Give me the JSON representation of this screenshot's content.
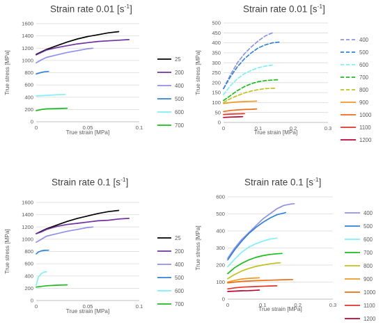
{
  "chart_data": [
    {
      "type": "line",
      "title_text": "Strain rate 0.01 [s",
      "title_exp": "-1",
      "title_close": "]",
      "xlabel": "True strain [MPa]",
      "ylabel": "True stress [MPa]",
      "xlim": [
        0,
        0.1
      ],
      "ylim": [
        0,
        1600
      ],
      "xticks": [
        0,
        0.05,
        0.1
      ],
      "xtick_labels": [
        "0",
        "0.05",
        "0.1"
      ],
      "yticks": [
        0,
        200,
        400,
        600,
        800,
        1000,
        1200,
        1400,
        1600
      ],
      "grid": "horizontal",
      "legend": "right",
      "series": [
        {
          "name": "25",
          "color": "#000000",
          "dash": "solid",
          "x": [
            0,
            0.005,
            0.01,
            0.02,
            0.03,
            0.04,
            0.05,
            0.06,
            0.07,
            0.08
          ],
          "y": [
            1100,
            1140,
            1180,
            1240,
            1300,
            1350,
            1390,
            1420,
            1450,
            1470
          ]
        },
        {
          "name": "200",
          "color": "#7030a0",
          "dash": "solid",
          "x": [
            0,
            0.005,
            0.01,
            0.02,
            0.03,
            0.04,
            0.05,
            0.06,
            0.07,
            0.08,
            0.09
          ],
          "y": [
            1090,
            1130,
            1170,
            1210,
            1240,
            1270,
            1290,
            1310,
            1320,
            1330,
            1340
          ]
        },
        {
          "name": "400",
          "color": "#8e90ec",
          "dash": "solid",
          "x": [
            0,
            0.005,
            0.01,
            0.02,
            0.03,
            0.04,
            0.05,
            0.055
          ],
          "y": [
            960,
            1010,
            1050,
            1090,
            1130,
            1160,
            1190,
            1200
          ]
        },
        {
          "name": "500",
          "color": "#2e83dc",
          "dash": "solid",
          "x": [
            0,
            0.004,
            0.008,
            0.012
          ],
          "y": [
            780,
            800,
            815,
            820
          ]
        },
        {
          "name": "600",
          "color": "#7cf1f7",
          "dash": "solid",
          "x": [
            0,
            0.01,
            0.02,
            0.028
          ],
          "y": [
            420,
            430,
            440,
            445
          ]
        },
        {
          "name": "700",
          "color": "#1bbd1b",
          "dash": "solid",
          "x": [
            0,
            0.005,
            0.01,
            0.02,
            0.03
          ],
          "y": [
            180,
            200,
            210,
            215,
            220
          ]
        }
      ]
    },
    {
      "type": "line",
      "title_text": "Strain rate 0.01 [s",
      "title_exp": "-1",
      "title_close": "]",
      "xlabel": "True strain [MPa]",
      "ylabel": "True stress [MPa]",
      "xlim": [
        0,
        0.3
      ],
      "ylim": [
        0,
        500
      ],
      "xticks": [
        0,
        0.1,
        0.2,
        0.3
      ],
      "xtick_labels": [
        "0",
        "0.1",
        "0.2",
        "0.3"
      ],
      "yticks": [
        0,
        50,
        100,
        150,
        200,
        250,
        300,
        350,
        400,
        450,
        500
      ],
      "grid": "horizontal",
      "legend": "right",
      "series": [
        {
          "name": "400",
          "color": "#8e90ec",
          "dash": "dashed",
          "x": [
            0,
            0.02,
            0.04,
            0.06,
            0.08,
            0.1,
            0.12,
            0.14
          ],
          "y": [
            170,
            240,
            300,
            345,
            380,
            410,
            435,
            450
          ]
        },
        {
          "name": "500",
          "color": "#2e83dc",
          "dash": "dashed",
          "x": [
            0,
            0.02,
            0.04,
            0.06,
            0.08,
            0.1,
            0.12,
            0.14,
            0.165
          ],
          "y": [
            170,
            230,
            280,
            320,
            350,
            375,
            390,
            400,
            405
          ]
        },
        {
          "name": "600",
          "color": "#7cf1f7",
          "dash": "dashed",
          "x": [
            0,
            0.02,
            0.04,
            0.06,
            0.08,
            0.1,
            0.12,
            0.14
          ],
          "y": [
            140,
            185,
            220,
            245,
            262,
            275,
            283,
            288
          ]
        },
        {
          "name": "700",
          "color": "#1bbd1b",
          "dash": "dashed",
          "x": [
            0,
            0.02,
            0.04,
            0.06,
            0.08,
            0.1,
            0.12,
            0.14,
            0.16
          ],
          "y": [
            110,
            135,
            160,
            180,
            195,
            205,
            210,
            213,
            215
          ]
        },
        {
          "name": "800",
          "color": "#c2c21a",
          "dash": "dashed",
          "x": [
            0,
            0.02,
            0.04,
            0.06,
            0.08,
            0.1,
            0.12,
            0.15
          ],
          "y": [
            100,
            120,
            135,
            148,
            158,
            165,
            170,
            172
          ]
        },
        {
          "name": "900",
          "color": "#ee9a20",
          "dash": "solid",
          "x": [
            0,
            0.02,
            0.04,
            0.06,
            0.08,
            0.095
          ],
          "y": [
            95,
            100,
            103,
            105,
            106,
            107
          ]
        },
        {
          "name": "1000",
          "color": "#ed6d15",
          "dash": "solid",
          "x": [
            0,
            0.02,
            0.04,
            0.06,
            0.08,
            0.095
          ],
          "y": [
            55,
            60,
            63,
            65,
            66,
            68
          ]
        },
        {
          "name": "1100",
          "color": "#e53122",
          "dash": "solid",
          "x": [
            0,
            0.02,
            0.04,
            0.06
          ],
          "y": [
            40,
            42,
            43,
            44
          ]
        },
        {
          "name": "1200",
          "color": "#c0002e",
          "dash": "solid",
          "x": [
            0,
            0.02,
            0.04,
            0.055
          ],
          "y": [
            25,
            27,
            28,
            29
          ]
        }
      ]
    },
    {
      "type": "line",
      "title_text": "Strain rate 0.1 [s",
      "title_exp": "-1",
      "title_close": "]",
      "xlabel": "True strain [MPa]",
      "ylabel": "True stress [MPa]",
      "xlim": [
        0,
        0.1
      ],
      "ylim": [
        0,
        1600
      ],
      "xticks": [
        0,
        0.05,
        0.1
      ],
      "xtick_labels": [
        "0",
        "0.05",
        "0.1"
      ],
      "yticks": [
        0,
        200,
        400,
        600,
        800,
        1000,
        1200,
        1400,
        1600
      ],
      "grid": "horizontal",
      "legend": "right",
      "series": [
        {
          "name": "25",
          "color": "#000000",
          "dash": "solid",
          "x": [
            0,
            0.005,
            0.01,
            0.02,
            0.03,
            0.04,
            0.05,
            0.06,
            0.07,
            0.08
          ],
          "y": [
            1090,
            1130,
            1170,
            1230,
            1290,
            1340,
            1380,
            1420,
            1450,
            1470
          ]
        },
        {
          "name": "200",
          "color": "#7030a0",
          "dash": "solid",
          "x": [
            0,
            0.005,
            0.01,
            0.02,
            0.03,
            0.04,
            0.05,
            0.06,
            0.07,
            0.08,
            0.09
          ],
          "y": [
            1090,
            1120,
            1160,
            1210,
            1240,
            1260,
            1280,
            1300,
            1310,
            1330,
            1340
          ]
        },
        {
          "name": "400",
          "color": "#8e90ec",
          "dash": "solid",
          "x": [
            0,
            0.005,
            0.01,
            0.02,
            0.03,
            0.04,
            0.05,
            0.055
          ],
          "y": [
            950,
            1000,
            1050,
            1090,
            1130,
            1160,
            1190,
            1200
          ]
        },
        {
          "name": "500",
          "color": "#2e83dc",
          "dash": "solid",
          "x": [
            0,
            0.002,
            0.005,
            0.008,
            0.012
          ],
          "y": [
            760,
            790,
            810,
            818,
            820
          ]
        },
        {
          "name": "600",
          "color": "#7cf1f7",
          "dash": "solid",
          "x": [
            0,
            0.002,
            0.005,
            0.008,
            0.01
          ],
          "y": [
            250,
            380,
            440,
            465,
            470
          ]
        },
        {
          "name": "700",
          "color": "#1bbd1b",
          "dash": "solid",
          "x": [
            0,
            0.005,
            0.01,
            0.02,
            0.03
          ],
          "y": [
            220,
            230,
            240,
            250,
            255
          ]
        }
      ]
    },
    {
      "type": "line",
      "title_text": "Strain rate 0.1 [s",
      "title_exp": "-1",
      "title_close": "]",
      "xlabel": "True strain [MPa]",
      "ylabel": "True stress [MPa]",
      "xlim": [
        0,
        0.3
      ],
      "ylim": [
        0,
        600
      ],
      "xticks": [
        0,
        0.1,
        0.2,
        0.3
      ],
      "xtick_labels": [
        "0",
        "0.1",
        "0.2",
        "0.3"
      ],
      "yticks": [
        0,
        100,
        200,
        300,
        400,
        500,
        600
      ],
      "grid": "horizontal",
      "legend": "right",
      "series": [
        {
          "name": "400",
          "color": "#8e90ec",
          "dash": "solid",
          "x": [
            0,
            0.02,
            0.04,
            0.06,
            0.08,
            0.1,
            0.12,
            0.14,
            0.16,
            0.18,
            0.19
          ],
          "y": [
            240,
            300,
            350,
            390,
            430,
            470,
            500,
            530,
            550,
            558,
            560
          ]
        },
        {
          "name": "500",
          "color": "#2e83dc",
          "dash": "solid",
          "x": [
            0,
            0.02,
            0.04,
            0.06,
            0.08,
            0.1,
            0.12,
            0.14,
            0.16,
            0.165
          ],
          "y": [
            230,
            290,
            340,
            385,
            420,
            450,
            475,
            495,
            505,
            508
          ]
        },
        {
          "name": "600",
          "color": "#7cf1f7",
          "dash": "solid",
          "x": [
            0,
            0.02,
            0.04,
            0.06,
            0.08,
            0.1,
            0.12,
            0.14
          ],
          "y": [
            190,
            235,
            275,
            305,
            325,
            340,
            352,
            358
          ]
        },
        {
          "name": "700",
          "color": "#1bbd1b",
          "dash": "solid",
          "x": [
            0,
            0.02,
            0.04,
            0.06,
            0.08,
            0.1,
            0.12,
            0.14,
            0.155
          ],
          "y": [
            150,
            185,
            210,
            230,
            245,
            255,
            262,
            266,
            268
          ]
        },
        {
          "name": "800",
          "color": "#c2c21a",
          "dash": "solid",
          "x": [
            0,
            0.02,
            0.04,
            0.06,
            0.08,
            0.1,
            0.12,
            0.14,
            0.15
          ],
          "y": [
            120,
            145,
            165,
            180,
            192,
            200,
            207,
            212,
            213
          ]
        },
        {
          "name": "900",
          "color": "#ee9a20",
          "dash": "solid",
          "x": [
            0,
            0.02,
            0.04,
            0.06,
            0.08,
            0.09
          ],
          "y": [
            100,
            110,
            118,
            122,
            124,
            125
          ]
        },
        {
          "name": "1000",
          "color": "#ed6d15",
          "dash": "solid",
          "x": [
            0,
            0.02,
            0.04,
            0.08,
            0.12,
            0.16,
            0.185
          ],
          "y": [
            95,
            100,
            104,
            108,
            111,
            114,
            115
          ]
        },
        {
          "name": "1100",
          "color": "#e53122",
          "dash": "solid",
          "x": [
            0,
            0.02,
            0.04,
            0.08,
            0.12,
            0.14
          ],
          "y": [
            60,
            66,
            70,
            74,
            77,
            78
          ]
        },
        {
          "name": "1200",
          "color": "#c0002e",
          "dash": "solid",
          "x": [
            0,
            0.02,
            0.04,
            0.06,
            0.08,
            0.09
          ],
          "y": [
            45,
            47,
            49,
            50,
            52,
            53
          ]
        }
      ]
    }
  ]
}
